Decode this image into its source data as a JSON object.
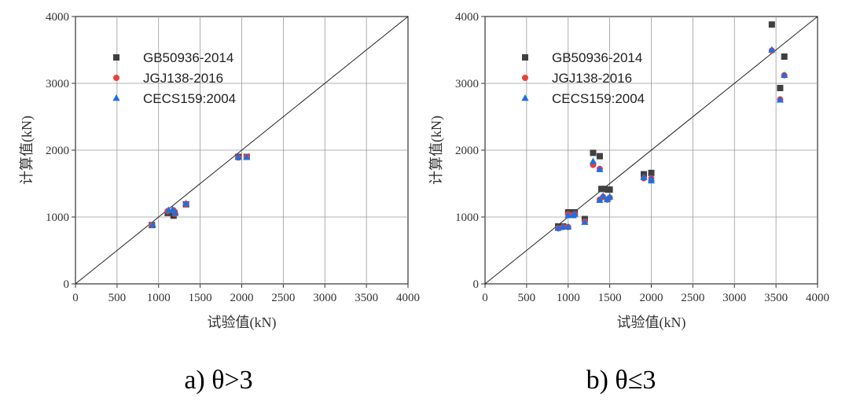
{
  "chart_data": [
    {
      "type": "scatter",
      "caption": "a) θ>3",
      "xlabel": "试验值(kN)",
      "ylabel": "计算值(kN)",
      "xlim": [
        0,
        4000
      ],
      "ylim": [
        0,
        4000
      ],
      "x_ticks": [
        "0",
        "500",
        "1000",
        "1500",
        "2000",
        "2500",
        "3000",
        "3500",
        "4000"
      ],
      "y_ticks": [
        "0",
        "1000",
        "2000",
        "3000",
        "4000"
      ],
      "grid": true,
      "reference_line": "y = x",
      "legend_position": "top-left",
      "series": [
        {
          "name": "GB50936-2014",
          "marker": "square",
          "color": "#404040",
          "points": [
            [
              920,
              880
            ],
            [
              1110,
              1060
            ],
            [
              1180,
              1020
            ],
            [
              1190,
              1060
            ],
            [
              1330,
              1190
            ],
            [
              1960,
              1900
            ],
            [
              2060,
              1900
            ]
          ]
        },
        {
          "name": "JGJ138-2016",
          "marker": "circle",
          "color": "#e8413a",
          "points": [
            [
              920,
              880
            ],
            [
              1110,
              1090
            ],
            [
              1180,
              1100
            ],
            [
              1200,
              1050
            ],
            [
              1330,
              1190
            ],
            [
              1960,
              1890
            ],
            [
              2060,
              1900
            ]
          ]
        },
        {
          "name": "CECS159:2004",
          "marker": "triangle",
          "color": "#1f6fe0",
          "points": [
            [
              930,
              880
            ],
            [
              1120,
              1100
            ],
            [
              1170,
              1110
            ],
            [
              1200,
              1060
            ],
            [
              1330,
              1200
            ],
            [
              1960,
              1890
            ],
            [
              2060,
              1890
            ]
          ]
        }
      ]
    },
    {
      "type": "scatter",
      "caption": "b) θ≤3",
      "xlabel": "试验值(kN)",
      "ylabel": "计算值(kN)",
      "xlim": [
        0,
        4000
      ],
      "ylim": [
        0,
        4000
      ],
      "x_ticks": [
        "0",
        "500",
        "1000",
        "1500",
        "2000",
        "2500",
        "3000",
        "3500",
        "4000"
      ],
      "y_ticks": [
        "0",
        "1000",
        "2000",
        "3000",
        "4000"
      ],
      "grid": true,
      "reference_line": "y = x",
      "legend_position": "top-left",
      "series": [
        {
          "name": "GB50936-2014",
          "marker": "square",
          "color": "#404040",
          "points": [
            [
              880,
              860
            ],
            [
              940,
              860
            ],
            [
              1000,
              1070
            ],
            [
              1040,
              1070
            ],
            [
              1080,
              1070
            ],
            [
              1200,
              970
            ],
            [
              1300,
              1960
            ],
            [
              1380,
              1910
            ],
            [
              1400,
              1420
            ],
            [
              1440,
              1420
            ],
            [
              1480,
              1410
            ],
            [
              1500,
              1410
            ],
            [
              1910,
              1640
            ],
            [
              2000,
              1660
            ],
            [
              3450,
              3880
            ],
            [
              3550,
              2930
            ],
            [
              3600,
              3400
            ]
          ]
        },
        {
          "name": "JGJ138-2016",
          "marker": "circle",
          "color": "#e8413a",
          "points": [
            [
              880,
              830
            ],
            [
              940,
              850
            ],
            [
              1000,
              1040
            ],
            [
              1000,
              850
            ],
            [
              1060,
              1030
            ],
            [
              1080,
              1040
            ],
            [
              1200,
              930
            ],
            [
              1300,
              1780
            ],
            [
              1380,
              1720
            ],
            [
              1380,
              1260
            ],
            [
              1420,
              1300
            ],
            [
              1470,
              1260
            ],
            [
              1500,
              1290
            ],
            [
              1910,
              1580
            ],
            [
              2000,
              1580
            ],
            [
              3450,
              3490
            ],
            [
              3550,
              2760
            ],
            [
              3600,
              3120
            ]
          ]
        },
        {
          "name": "CECS159:2004",
          "marker": "triangle",
          "color": "#1f6fe0",
          "points": [
            [
              880,
              830
            ],
            [
              940,
              850
            ],
            [
              1000,
              1020
            ],
            [
              1000,
              850
            ],
            [
              1060,
              1020
            ],
            [
              1080,
              1040
            ],
            [
              1200,
              920
            ],
            [
              1300,
              1830
            ],
            [
              1380,
              1710
            ],
            [
              1380,
              1250
            ],
            [
              1420,
              1310
            ],
            [
              1470,
              1260
            ],
            [
              1500,
              1300
            ],
            [
              1910,
              1590
            ],
            [
              2000,
              1540
            ],
            [
              2000,
              1570
            ],
            [
              3450,
              3500
            ],
            [
              3550,
              2750
            ],
            [
              3600,
              3120
            ]
          ]
        }
      ]
    }
  ]
}
